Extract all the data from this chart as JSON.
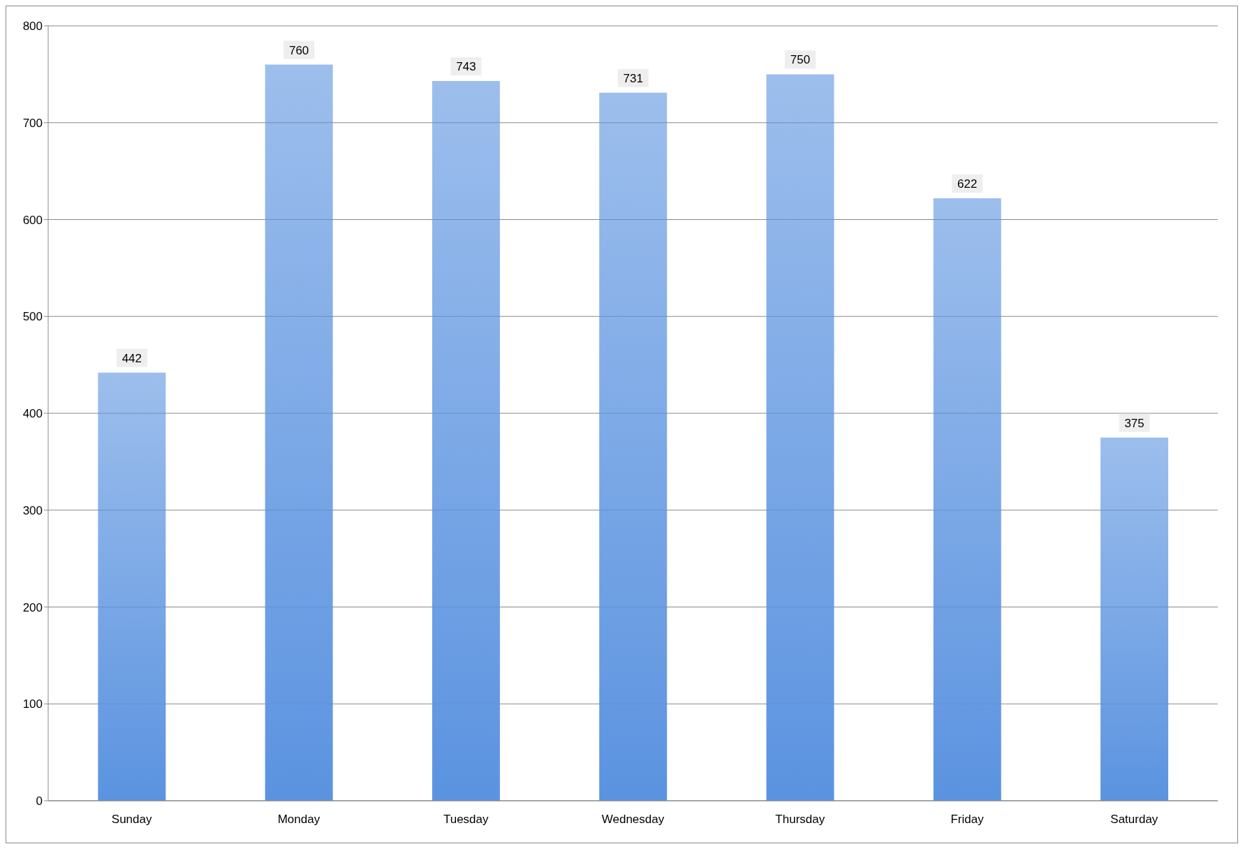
{
  "chart_data": {
    "type": "bar",
    "categories": [
      "Sunday",
      "Monday",
      "Tuesday",
      "Wednesday",
      "Thursday",
      "Friday",
      "Saturday"
    ],
    "values": [
      442,
      760,
      743,
      731,
      750,
      622,
      375
    ],
    "color": "#5b93e0",
    "ylim": [
      0,
      800
    ],
    "yticks": [
      0,
      100,
      200,
      300,
      400,
      500,
      600,
      700,
      800
    ],
    "grid": "y",
    "data_labels": true,
    "legend": false
  }
}
